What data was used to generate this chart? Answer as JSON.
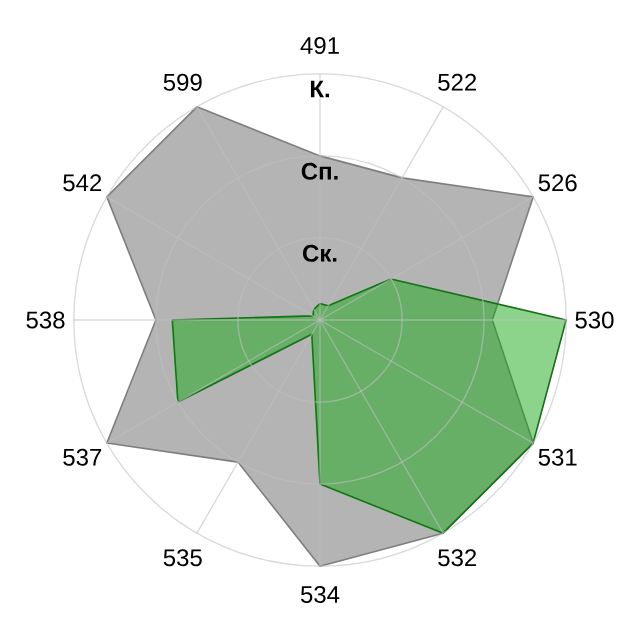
{
  "chart_data": {
    "type": "radar",
    "categories": [
      "491",
      "522",
      "526",
      "530",
      "531",
      "532",
      "534",
      "535",
      "537",
      "538",
      "542",
      "599"
    ],
    "ylim": [
      0,
      3
    ],
    "yticks": [
      {
        "value": 1,
        "label": "Ск."
      },
      {
        "value": 2,
        "label": "Сп."
      },
      {
        "value": 3,
        "label": "К."
      }
    ],
    "grid": true,
    "series": [
      {
        "color": "#b4b4b4",
        "values": [
          2.0,
          2.0,
          3.0,
          2.1,
          3.0,
          3.0,
          3.0,
          2.0,
          3.0,
          2.0,
          3.0,
          3.0
        ]
      },
      {
        "color": "#1aa71a",
        "values": [
          0.2,
          0.2,
          1.0,
          3.0,
          3.0,
          3.0,
          2.0,
          0.2,
          2.0,
          1.8,
          0.1,
          0.15
        ]
      }
    ]
  }
}
